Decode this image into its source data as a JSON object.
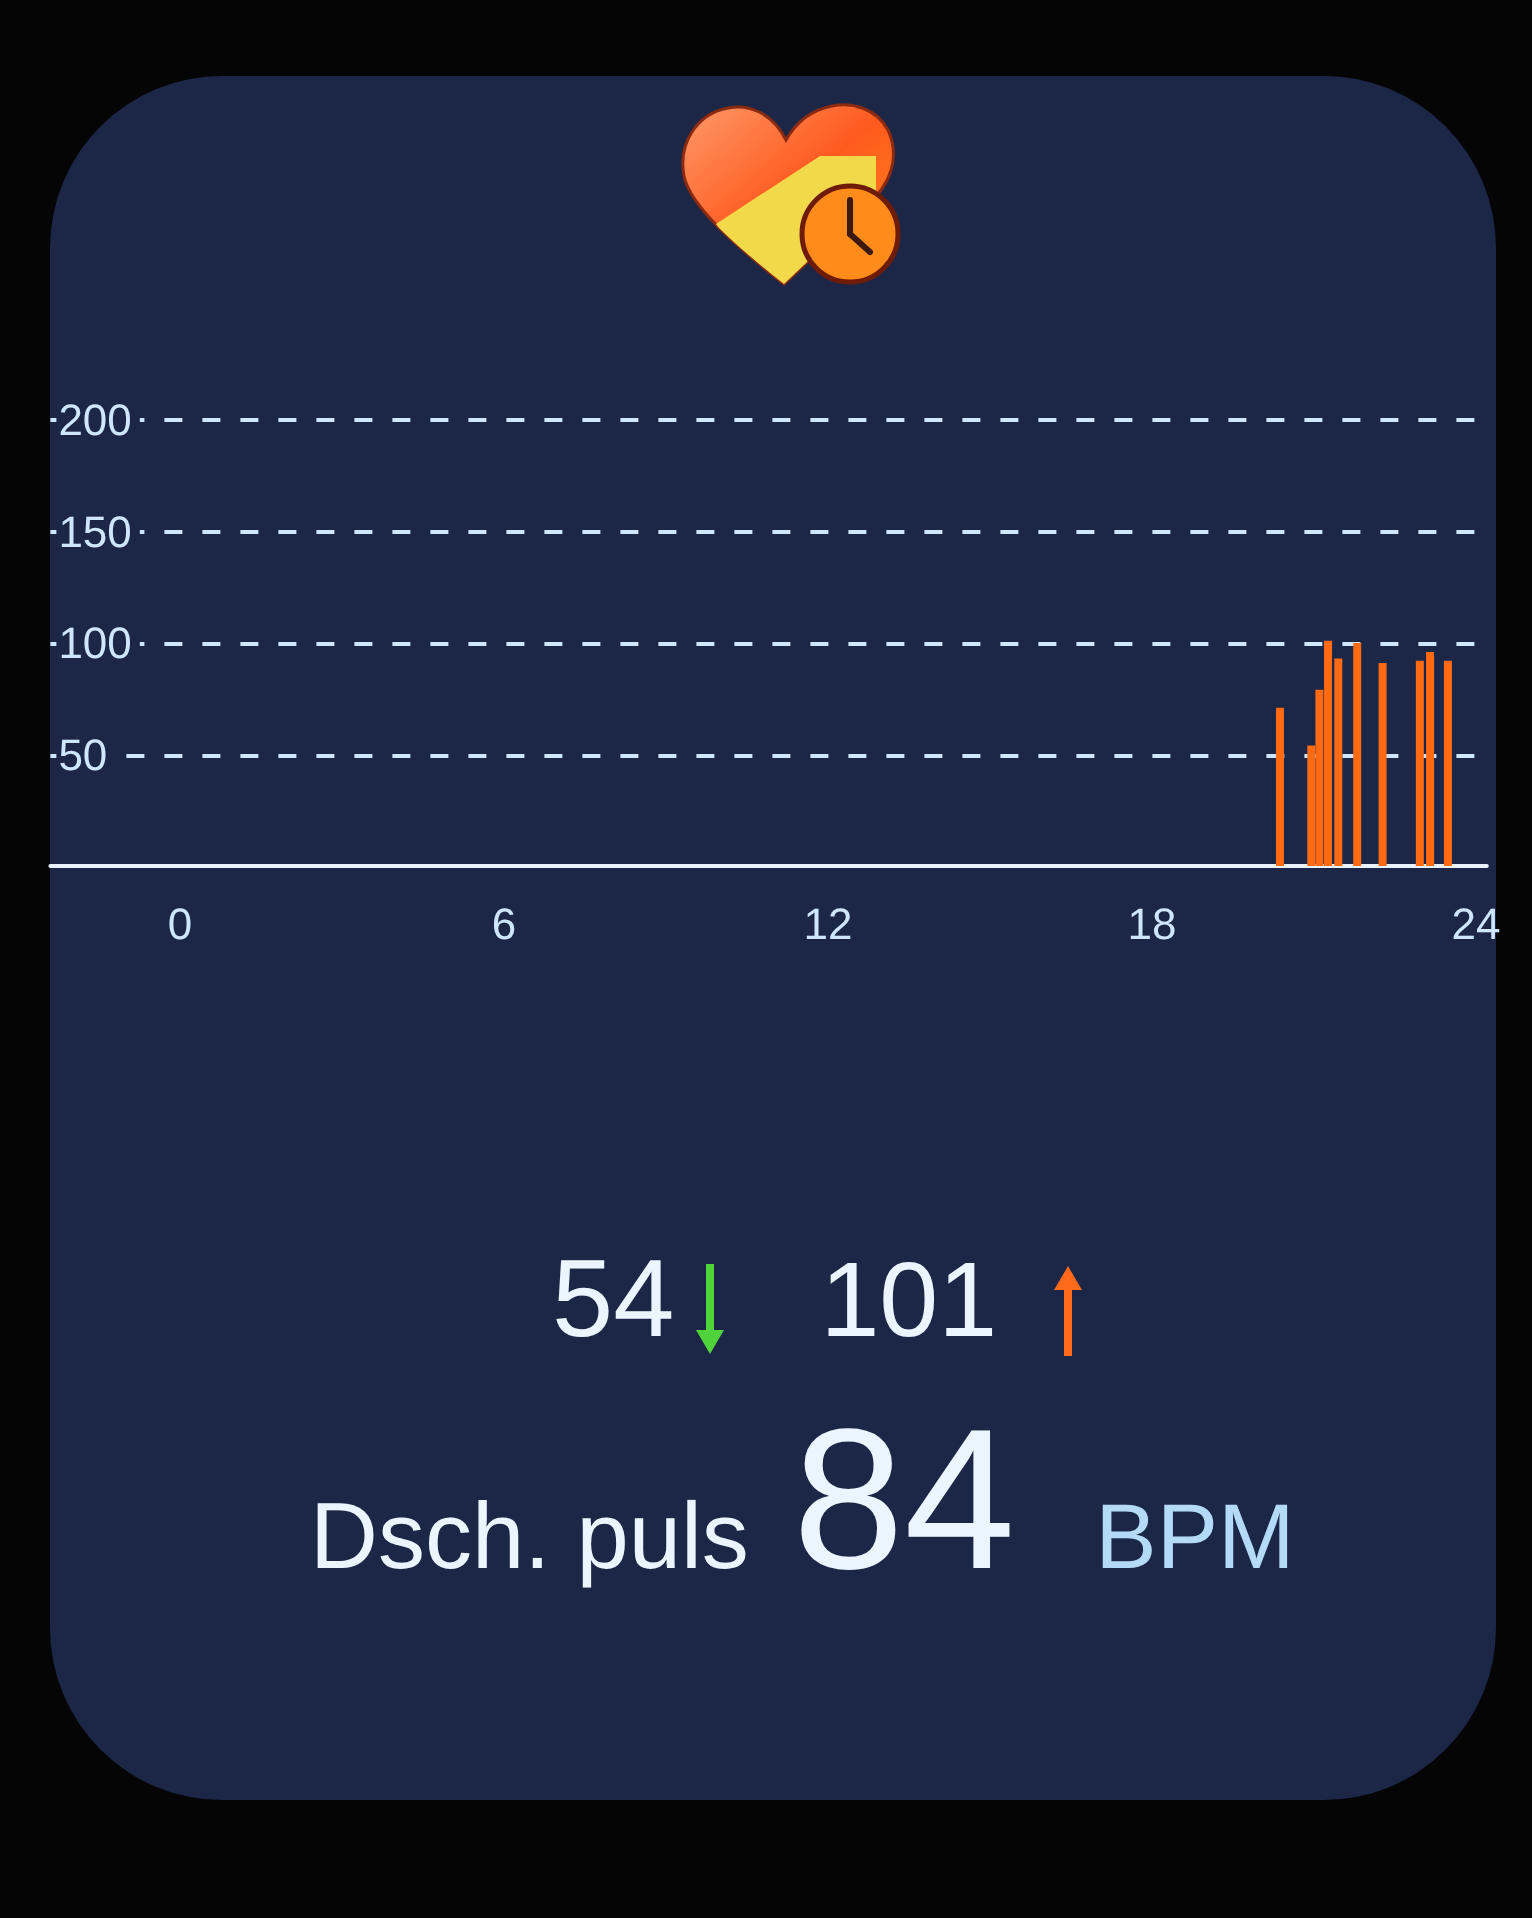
{
  "chart_data": {
    "type": "bar",
    "x": [
      20.37,
      20.95,
      21.1,
      21.26,
      21.45,
      21.8,
      22.27,
      22.96,
      23.15,
      23.48
    ],
    "values": [
      71,
      54,
      79,
      101,
      93,
      100,
      91,
      92,
      96,
      92
    ],
    "color": "#ff6a13",
    "xlim": [
      -2.4,
      24.2
    ],
    "xticks": [
      0,
      6,
      12,
      18,
      24
    ],
    "ylim": [
      0,
      200
    ],
    "yticks": [
      50,
      100,
      150,
      200
    ],
    "grid": "y",
    "annotations": [
      "54",
      "101",
      "Dsch. puls",
      "84",
      "BPM"
    ]
  }
}
